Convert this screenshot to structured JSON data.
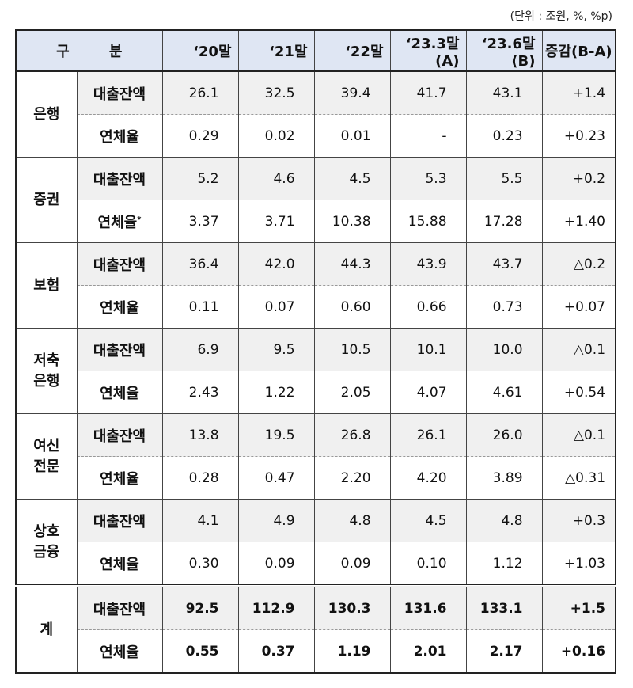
{
  "unit_note": "(단위 : 조원, %, %p)",
  "headers": {
    "category": "구 분",
    "columns": [
      "‘20말",
      "‘21말",
      "‘22말",
      "‘23.3말(A)",
      "‘23.6말(B)",
      "증감(B-A)"
    ]
  },
  "groups": [
    {
      "name": "은행",
      "rows": [
        {
          "item": "대출잔액",
          "values": [
            "26.1",
            "32.5",
            "39.4",
            "41.7",
            "43.1",
            "+1.4"
          ]
        },
        {
          "item": "연체율",
          "values": [
            "0.29",
            "0.02",
            "0.01",
            "-",
            "0.23",
            "+0.23"
          ]
        }
      ]
    },
    {
      "name": "증권",
      "rows": [
        {
          "item": "대출잔액",
          "values": [
            "5.2",
            "4.6",
            "4.5",
            "5.3",
            "5.5",
            "+0.2"
          ]
        },
        {
          "item": "연체율*",
          "values": [
            "3.37",
            "3.71",
            "10.38",
            "15.88",
            "17.28",
            "+1.40"
          ]
        }
      ]
    },
    {
      "name": "보험",
      "rows": [
        {
          "item": "대출잔액",
          "values": [
            "36.4",
            "42.0",
            "44.3",
            "43.9",
            "43.7",
            "△0.2"
          ]
        },
        {
          "item": "연체율",
          "values": [
            "0.11",
            "0.07",
            "0.60",
            "0.66",
            "0.73",
            "+0.07"
          ]
        }
      ]
    },
    {
      "name": "저축\n은행",
      "rows": [
        {
          "item": "대출잔액",
          "values": [
            "6.9",
            "9.5",
            "10.5",
            "10.1",
            "10.0",
            "△0.1"
          ]
        },
        {
          "item": "연체율",
          "values": [
            "2.43",
            "1.22",
            "2.05",
            "4.07",
            "4.61",
            "+0.54"
          ]
        }
      ]
    },
    {
      "name": "여신\n전문",
      "rows": [
        {
          "item": "대출잔액",
          "values": [
            "13.8",
            "19.5",
            "26.8",
            "26.1",
            "26.0",
            "△0.1"
          ]
        },
        {
          "item": "연체율",
          "values": [
            "0.28",
            "0.47",
            "2.20",
            "4.20",
            "3.89",
            "△0.31"
          ]
        }
      ]
    },
    {
      "name": "상호\n금융",
      "rows": [
        {
          "item": "대출잔액",
          "values": [
            "4.1",
            "4.9",
            "4.8",
            "4.5",
            "4.8",
            "+0.3"
          ]
        },
        {
          "item": "연체율",
          "values": [
            "0.30",
            "0.09",
            "0.09",
            "0.10",
            "1.12",
            "+1.03"
          ]
        }
      ]
    },
    {
      "name": "계",
      "total": true,
      "rows": [
        {
          "item": "대출잔액",
          "values": [
            "92.5",
            "112.9",
            "130.3",
            "131.6",
            "133.1",
            "+1.5"
          ]
        },
        {
          "item": "연체율",
          "values": [
            "0.55",
            "0.37",
            "1.19",
            "2.01",
            "2.17",
            "+0.16"
          ]
        }
      ]
    }
  ]
}
